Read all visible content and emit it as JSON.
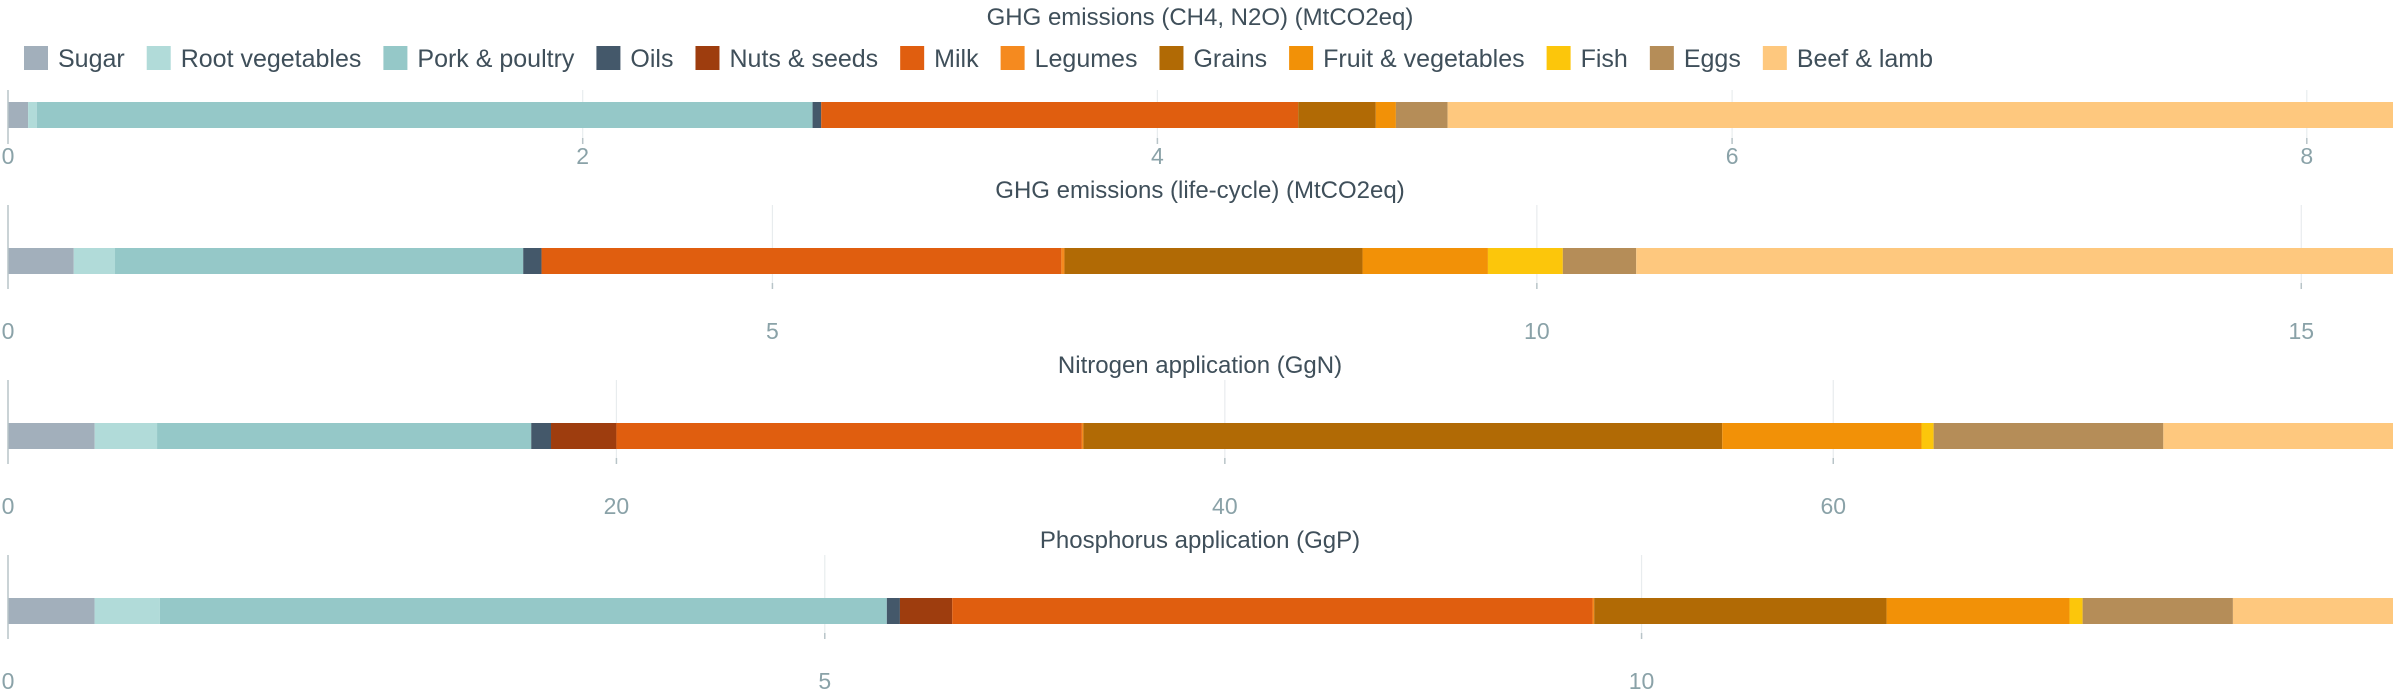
{
  "colors": {
    "Sugar": "#a2afbb",
    "Root vegetables": "#b1dbd9",
    "Pork & poultry": "#95c8c8",
    "Oils": "#44586a",
    "Nuts & seeds": "#9e3d0e",
    "Milk": "#e05e0f",
    "Legumes": "#f58a1f",
    "Grains": "#b16a05",
    "Fruit & vegetables": "#f29107",
    "Fish": "#fcc60b",
    "Eggs": "#b58d58",
    "Beef & lamb": "#fec87e"
  },
  "chart_data": [
    {
      "type": "bar",
      "orientation": "horizontal",
      "stacked": true,
      "title": "GHG emissions (CH4, N2O) (MtCO2eq)",
      "xlim": [
        0,
        8.3
      ],
      "xticks": [
        0,
        2,
        4,
        6,
        8
      ],
      "grid": true,
      "legend": "top",
      "series": [
        {
          "name": "Sugar",
          "value": 0.07
        },
        {
          "name": "Root vegetables",
          "value": 0.03
        },
        {
          "name": "Pork & poultry",
          "value": 2.7
        },
        {
          "name": "Oils",
          "value": 0.03
        },
        {
          "name": "Nuts & seeds",
          "value": 0.0
        },
        {
          "name": "Milk",
          "value": 1.66
        },
        {
          "name": "Legumes",
          "value": 0.0
        },
        {
          "name": "Grains",
          "value": 0.27
        },
        {
          "name": "Fruit & vegetables",
          "value": 0.07
        },
        {
          "name": "Fish",
          "value": 0.0
        },
        {
          "name": "Eggs",
          "value": 0.18
        },
        {
          "name": "Beef & lamb",
          "value": 3.29
        }
      ]
    },
    {
      "type": "bar",
      "orientation": "horizontal",
      "stacked": true,
      "title": "GHG emissions (life-cycle) (MtCO2eq)",
      "xlim": [
        0,
        15.6
      ],
      "xticks": [
        0,
        5,
        10,
        15
      ],
      "grid": true,
      "series": [
        {
          "name": "Sugar",
          "value": 0.43
        },
        {
          "name": "Root vegetables",
          "value": 0.27
        },
        {
          "name": "Pork & poultry",
          "value": 2.67
        },
        {
          "name": "Oils",
          "value": 0.12
        },
        {
          "name": "Nuts & seeds",
          "value": 0.0
        },
        {
          "name": "Milk",
          "value": 3.4
        },
        {
          "name": "Legumes",
          "value": 0.02
        },
        {
          "name": "Grains",
          "value": 1.95
        },
        {
          "name": "Fruit & vegetables",
          "value": 0.82
        },
        {
          "name": "Fish",
          "value": 0.49
        },
        {
          "name": "Eggs",
          "value": 0.48
        },
        {
          "name": "Beef & lamb",
          "value": 4.95
        }
      ]
    },
    {
      "type": "bar",
      "orientation": "horizontal",
      "stacked": true,
      "title": "Nitrogen application (GgN)",
      "xlim": [
        0,
        78.4
      ],
      "xticks": [
        0,
        20,
        40,
        60
      ],
      "grid": true,
      "series": [
        {
          "name": "Sugar",
          "value": 2.85
        },
        {
          "name": "Root vegetables",
          "value": 2.05
        },
        {
          "name": "Pork & poultry",
          "value": 12.3
        },
        {
          "name": "Oils",
          "value": 0.65
        },
        {
          "name": "Nuts & seeds",
          "value": 2.15
        },
        {
          "name": "Milk",
          "value": 15.3
        },
        {
          "name": "Legumes",
          "value": 0.05
        },
        {
          "name": "Grains",
          "value": 21.0
        },
        {
          "name": "Fruit & vegetables",
          "value": 6.55
        },
        {
          "name": "Fish",
          "value": 0.4
        },
        {
          "name": "Eggs",
          "value": 7.55
        },
        {
          "name": "Beef & lamb",
          "value": 7.55
        }
      ]
    },
    {
      "type": "bar",
      "orientation": "horizontal",
      "stacked": true,
      "title": "Phosphorus application (GgP)",
      "xlim": [
        0,
        14.6
      ],
      "xticks": [
        0,
        5,
        10
      ],
      "grid": true,
      "series": [
        {
          "name": "Sugar",
          "value": 0.53
        },
        {
          "name": "Root vegetables",
          "value": 0.4
        },
        {
          "name": "Pork & poultry",
          "value": 4.45
        },
        {
          "name": "Oils",
          "value": 0.08
        },
        {
          "name": "Nuts & seeds",
          "value": 0.32
        },
        {
          "name": "Milk",
          "value": 3.92
        },
        {
          "name": "Legumes",
          "value": 0.01
        },
        {
          "name": "Grains",
          "value": 1.79
        },
        {
          "name": "Fruit & vegetables",
          "value": 1.12
        },
        {
          "name": "Fish",
          "value": 0.08
        },
        {
          "name": "Eggs",
          "value": 0.92
        },
        {
          "name": "Beef & lamb",
          "value": 0.98
        }
      ]
    }
  ]
}
